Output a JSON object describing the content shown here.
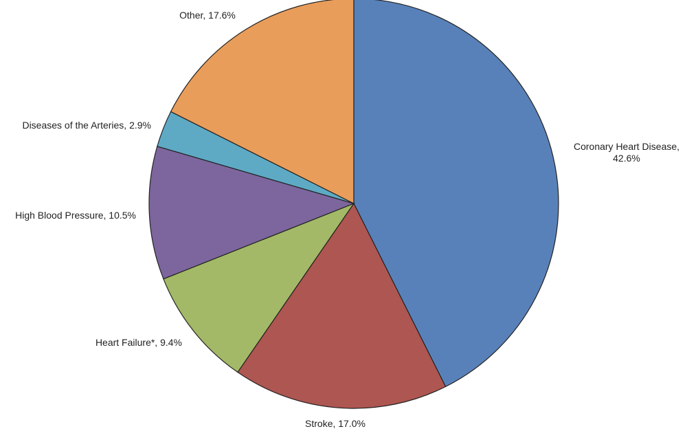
{
  "chart_data": {
    "type": "pie",
    "start_angle_deg": 0,
    "direction": "clockwise",
    "slices": [
      {
        "label": "Coronary Heart Disease,",
        "label_line2": "42.6%",
        "value": 42.6,
        "color": "#5981b9"
      },
      {
        "label": "Stroke, 17.0%",
        "value": 17.0,
        "color": "#ae5651"
      },
      {
        "label": "Heart Failure*, 9.4%",
        "value": 9.4,
        "color": "#a3b967"
      },
      {
        "label": "High Blood Pressure, 10.5%",
        "value": 10.5,
        "color": "#7c669d"
      },
      {
        "label": "Diseases of the Arteries, 2.9%",
        "value": 2.9,
        "color": "#5eaac5"
      },
      {
        "label": "Other, 17.6%",
        "value": 17.6,
        "color": "#e99d5a"
      }
    ]
  }
}
